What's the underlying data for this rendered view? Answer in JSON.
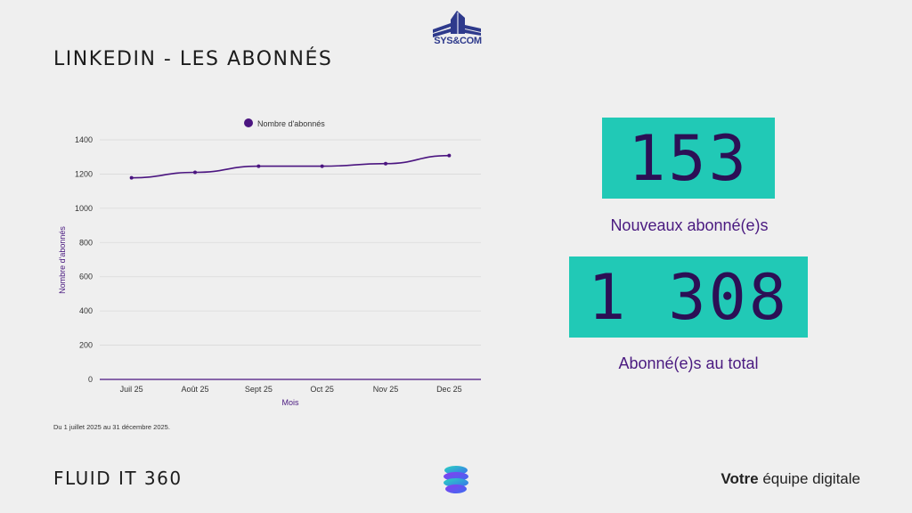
{
  "header": {
    "title": "LINKEDIN - LES ABONNÉS",
    "logo_text": "SYS&COM"
  },
  "stats": {
    "new_value": "153",
    "new_label": "Nouveaux abonné(e)s",
    "total_value": "1 308",
    "total_label": "Abonné(e)s au total"
  },
  "footnote": "Du 1 juillet 2025 au 31 décembre 2025.",
  "footer": {
    "brand": "FLUID IT 360",
    "tagline_bold": "Votre",
    "tagline_rest": " équipe digitale"
  },
  "colors": {
    "accent": "#21c9b6",
    "line": "#4b1580",
    "text_purple": "#4a1a80"
  },
  "chart_data": {
    "type": "line",
    "categories": [
      "Juil 25",
      "Août 25",
      "Sept 25",
      "Oct 25",
      "Nov 25",
      "Dec 25"
    ],
    "series": [
      {
        "name": "Nombre d'abonnés",
        "values": [
          1178,
          1210,
          1246,
          1246,
          1261,
          1308
        ]
      }
    ],
    "xlabel": "Mois",
    "ylabel": "Nombre d'abonnés",
    "ylim": [
      0,
      1400
    ],
    "yticks": [
      0,
      200,
      400,
      600,
      800,
      1000,
      1200,
      1400
    ],
    "grid": true,
    "legend": "top"
  }
}
